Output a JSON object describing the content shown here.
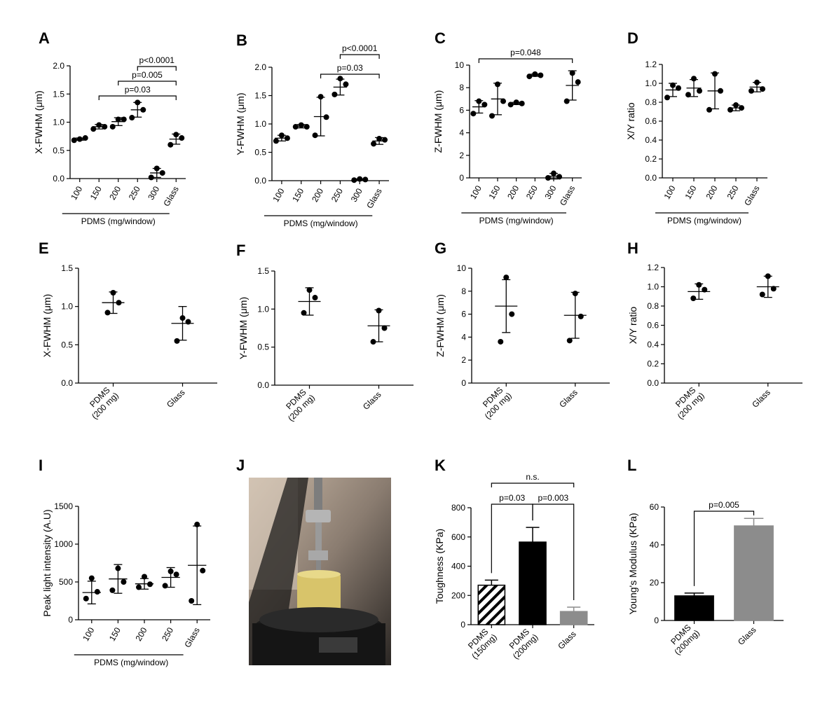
{
  "chart_data": [
    {
      "type": "dotplot",
      "panel": "A",
      "ylabel": "X-FWHM (μm)",
      "categories": [
        "100",
        "150",
        "200",
        "250",
        "300",
        "Glass"
      ],
      "group_label": "PDMS (mg/window)",
      "points": [
        [
          0.68,
          0.7,
          0.72
        ],
        [
          0.88,
          0.95,
          0.92
        ],
        [
          0.92,
          1.05,
          1.05
        ],
        [
          1.08,
          1.35,
          1.22
        ],
        [
          0.02,
          0.18,
          0.1
        ],
        [
          0.6,
          0.78,
          0.72
        ]
      ],
      "means": [
        0.7,
        0.92,
        1.01,
        1.22,
        0.1,
        0.7
      ],
      "sd": [
        0.02,
        0.04,
        0.07,
        0.13,
        0.08,
        0.09
      ],
      "ylim": [
        0,
        2
      ],
      "yticks": [
        {
          "value": 0,
          "label": "0.0"
        },
        {
          "value": 0.5,
          "label": "0.5"
        },
        {
          "value": 1,
          "label": "1.0"
        },
        {
          "value": 1.5,
          "label": "1.5"
        },
        {
          "value": 2,
          "label": "2.0"
        }
      ],
      "color": "#000000",
      "brackets": [
        {
          "from": 1,
          "to": 5,
          "label": "p=0.03"
        },
        {
          "from": 2,
          "to": 5,
          "label": "p=0.005"
        },
        {
          "from": 3,
          "to": 5,
          "label": "p<0.0001"
        }
      ]
    },
    {
      "type": "dotplot",
      "panel": "B",
      "ylabel": "Y-FWHM (μm)",
      "categories": [
        "100",
        "150",
        "200",
        "250",
        "300",
        "Glass"
      ],
      "group_label": "PDMS (mg/window)",
      "points": [
        [
          0.7,
          0.8,
          0.75
        ],
        [
          0.95,
          0.98,
          0.95
        ],
        [
          0.8,
          1.48,
          1.12
        ],
        [
          1.52,
          1.8,
          1.7
        ],
        [
          0.01,
          0.03,
          0.02
        ],
        [
          0.65,
          0.74,
          0.72
        ]
      ],
      "means": [
        0.75,
        0.96,
        1.13,
        1.65,
        0.02,
        0.7
      ],
      "sd": [
        0.05,
        0.03,
        0.34,
        0.14,
        0.01,
        0.06
      ],
      "ylim": [
        0,
        2
      ],
      "yticks": [
        {
          "value": 0,
          "label": "0.0"
        },
        {
          "value": 0.5,
          "label": "0.5"
        },
        {
          "value": 1,
          "label": "1.0"
        },
        {
          "value": 1.5,
          "label": "1.5"
        },
        {
          "value": 2,
          "label": "2.0"
        }
      ],
      "color": "#000000",
      "brackets": [
        {
          "from": 2,
          "to": 5,
          "label": "p=0.03"
        },
        {
          "from": 3,
          "to": 5,
          "label": "p<0.0001"
        }
      ]
    },
    {
      "type": "dotplot",
      "panel": "C",
      "ylabel": "Z-FWHM (μm)",
      "categories": [
        "100",
        "150",
        "200",
        "250",
        "300",
        "Glass"
      ],
      "group_label": "PDMS (mg/window)",
      "points": [
        [
          5.7,
          6.8,
          6.5
        ],
        [
          5.5,
          8.3,
          6.8
        ],
        [
          6.5,
          6.7,
          6.6
        ],
        [
          9.0,
          9.2,
          9.1
        ],
        [
          0.0,
          0.4,
          0.1
        ],
        [
          6.8,
          9.3,
          8.5
        ]
      ],
      "means": [
        6.3,
        7.0,
        6.6,
        9.1,
        0.15,
        8.2
      ],
      "sd": [
        0.55,
        1.4,
        0.1,
        0.1,
        0.25,
        1.3
      ],
      "ylim": [
        0,
        10
      ],
      "yticks": [
        0,
        2,
        4,
        6,
        8,
        10
      ],
      "color": "#000000",
      "brackets": [
        {
          "from": 0,
          "to": 5,
          "label": "p=0.048"
        }
      ]
    },
    {
      "type": "dotplot",
      "panel": "D",
      "ylabel": "X/Y ratio",
      "categories": [
        "100",
        "150",
        "200",
        "250",
        "Glass"
      ],
      "group_label": "PDMS (mg/window)",
      "points": [
        [
          0.85,
          0.98,
          0.95
        ],
        [
          0.88,
          1.05,
          0.92
        ],
        [
          0.72,
          1.1,
          0.92
        ],
        [
          0.72,
          0.77,
          0.74
        ],
        [
          0.92,
          1.01,
          0.94
        ]
      ],
      "means": [
        0.93,
        0.95,
        0.92,
        0.74,
        0.96
      ],
      "sd": [
        0.07,
        0.09,
        0.19,
        0.03,
        0.05
      ],
      "ylim": [
        0,
        1.2
      ],
      "yticks": [
        {
          "value": 0,
          "label": "0.0"
        },
        {
          "value": 0.2,
          "label": "0.2"
        },
        {
          "value": 0.4,
          "label": "0.4"
        },
        {
          "value": 0.6,
          "label": "0.6"
        },
        {
          "value": 0.8,
          "label": "0.8"
        },
        {
          "value": 1,
          "label": "1.0"
        },
        {
          "value": 1.2,
          "label": "1.2"
        }
      ],
      "color": "#000000",
      "brackets": []
    },
    {
      "type": "dotplot",
      "panel": "E",
      "ylabel": "X-FWHM (μm)",
      "categories": [
        "PDMS (200 mg)",
        "Glass"
      ],
      "points": [
        [
          0.92,
          1.18,
          1.05
        ],
        [
          0.55,
          0.85,
          0.8
        ]
      ],
      "means": [
        1.05,
        0.78
      ],
      "sd": [
        0.14,
        0.22
      ],
      "ylim": [
        0,
        1.5
      ],
      "yticks": [
        {
          "value": 0,
          "label": "0.0"
        },
        {
          "value": 0.5,
          "label": "0.5"
        },
        {
          "value": 1,
          "label": "1.0"
        },
        {
          "value": 1.5,
          "label": "1.5"
        }
      ],
      "color": "#000000",
      "brackets": []
    },
    {
      "type": "dotplot",
      "panel": "F",
      "ylabel": "Y-FWHM (μm)",
      "categories": [
        "PDMS (200 mg)",
        "Glass"
      ],
      "points": [
        [
          0.95,
          1.25,
          1.15
        ],
        [
          0.57,
          0.98,
          0.75
        ]
      ],
      "means": [
        1.1,
        0.78
      ],
      "sd": [
        0.18,
        0.21
      ],
      "ylim": [
        0,
        1.5
      ],
      "yticks": [
        {
          "value": 0,
          "label": "0.0"
        },
        {
          "value": 0.5,
          "label": "0.5"
        },
        {
          "value": 1,
          "label": "1.0"
        },
        {
          "value": 1.5,
          "label": "1.5"
        }
      ],
      "color": "#000000",
      "brackets": []
    },
    {
      "type": "dotplot",
      "panel": "G",
      "ylabel": "Z-FWHM (μm)",
      "categories": [
        "PDMS (200 mg)",
        "Glass"
      ],
      "points": [
        [
          3.6,
          9.2,
          6.0
        ],
        [
          3.7,
          7.8,
          5.8
        ]
      ],
      "means": [
        6.7,
        5.9
      ],
      "sd": [
        2.3,
        2.0
      ],
      "ylim": [
        0,
        10
      ],
      "yticks": [
        0,
        2,
        4,
        6,
        8,
        10
      ],
      "color": "#000000",
      "brackets": []
    },
    {
      "type": "dotplot",
      "panel": "H",
      "ylabel": "X/Y ratio",
      "categories": [
        "PDMS (200 mg)",
        "Glass"
      ],
      "points": [
        [
          0.88,
          1.02,
          0.97
        ],
        [
          0.92,
          1.11,
          0.98
        ]
      ],
      "means": [
        0.95,
        1.0
      ],
      "sd": [
        0.08,
        0.11
      ],
      "ylim": [
        0,
        1.2
      ],
      "yticks": [
        {
          "value": 0,
          "label": "0.0"
        },
        {
          "value": 0.2,
          "label": "0.2"
        },
        {
          "value": 0.4,
          "label": "0.4"
        },
        {
          "value": 0.6,
          "label": "0.6"
        },
        {
          "value": 0.8,
          "label": "0.8"
        },
        {
          "value": 1,
          "label": "1.0"
        },
        {
          "value": 1.2,
          "label": "1.2"
        }
      ],
      "color": "#000000",
      "brackets": []
    },
    {
      "type": "dotplot",
      "panel": "I",
      "ylabel": "Peak light intensity (A.U)",
      "categories": [
        "100",
        "150",
        "200",
        "250",
        "Glass"
      ],
      "group_label": "PDMS (mg/window)",
      "points": [
        [
          280,
          550,
          370
        ],
        [
          390,
          680,
          500
        ],
        [
          430,
          570,
          470
        ],
        [
          450,
          640,
          600
        ],
        [
          250,
          1260,
          650
        ]
      ],
      "means": [
        360,
        540,
        475,
        560,
        720
      ],
      "sd": [
        150,
        190,
        70,
        130,
        520
      ],
      "ylim": [
        0,
        1500
      ],
      "yticks": [
        0,
        500,
        1000,
        1500
      ],
      "color": "#000000",
      "brackets": []
    },
    {
      "type": "image",
      "panel": "J"
    },
    {
      "type": "bar",
      "panel": "K",
      "ylabel": "Toughness (KPa)",
      "categories": [
        "PDMS (150mg)",
        "PDMS (200mg)",
        "Glass"
      ],
      "values": [
        270,
        565,
        90
      ],
      "errors": [
        35,
        100,
        30
      ],
      "colors": [
        "#000000",
        "#000000",
        "#8c8c8c"
      ],
      "patterns": [
        "hatched",
        "solid",
        "solid"
      ],
      "ylim": [
        0,
        800
      ],
      "yticks": [
        0,
        200,
        400,
        600,
        800
      ],
      "brackets": [
        {
          "from": 0,
          "to": 1,
          "label": "p=0.03"
        },
        {
          "from": 1,
          "to": 2,
          "label": "p=0.003"
        },
        {
          "from": 0,
          "to": 2,
          "label": "n.s."
        }
      ]
    },
    {
      "type": "bar",
      "panel": "L",
      "ylabel": "Young's Modulus (KPa)",
      "categories": [
        "PDMS (200mg)",
        "Glass"
      ],
      "values": [
        13,
        50
      ],
      "errors": [
        1.5,
        4
      ],
      "colors": [
        "#000000",
        "#8c8c8c"
      ],
      "patterns": [
        "solid",
        "solid"
      ],
      "ylim": [
        0,
        60
      ],
      "yticks": [
        0,
        20,
        40,
        60
      ],
      "brackets": [
        {
          "from": 0,
          "to": 1,
          "label": "p=0.005"
        }
      ]
    }
  ]
}
